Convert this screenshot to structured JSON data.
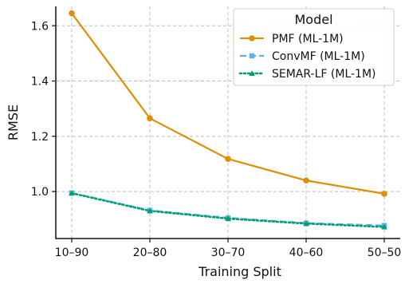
{
  "chart_data": {
    "type": "line",
    "title": "",
    "xlabel": "Training Split",
    "ylabel": "RMSE",
    "categories": [
      "10–90",
      "20–80",
      "30–70",
      "40–60",
      "50–50"
    ],
    "ylim": [
      0.83,
      1.67
    ],
    "yticks": [
      1.0,
      1.2,
      1.4,
      1.6
    ],
    "ytick_labels": [
      "1.0",
      "1.2",
      "1.4",
      "1.6"
    ],
    "grid": true,
    "legend": {
      "title": "Model",
      "position": "top-right"
    },
    "series": [
      {
        "name": "PMF (ML-1M)",
        "values": [
          1.645,
          1.265,
          1.118,
          1.04,
          0.992
        ],
        "color": "#DE8F05",
        "linestyle": "solid",
        "marker": "circle"
      },
      {
        "name": "ConvMF (ML-1M)",
        "values": [
          0.995,
          0.932,
          0.905,
          0.886,
          0.877
        ],
        "color": "#56B4E9",
        "linestyle": "dashed",
        "marker": "square"
      },
      {
        "name": "SEMAR-LF (ML-1M)",
        "values": [
          0.994,
          0.93,
          0.902,
          0.884,
          0.872
        ],
        "color": "#029E73",
        "linestyle": "dotted",
        "marker": "triangle"
      }
    ]
  }
}
